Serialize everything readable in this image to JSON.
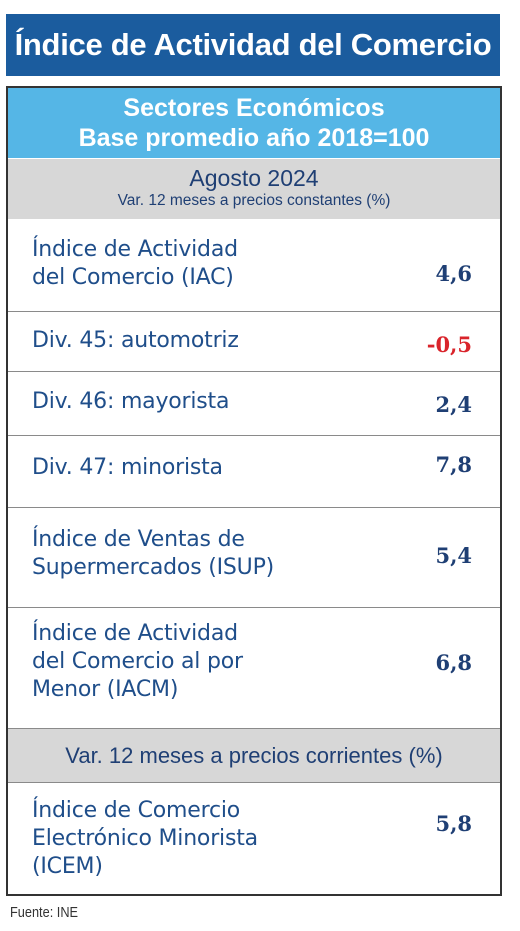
{
  "title": "Índice de Actividad del Comercio",
  "header": {
    "line1": "Sectores Económicos",
    "line2": "Base promedio año 2018=100"
  },
  "period": {
    "month": "Agosto 2024",
    "subtitle": "Var. 12 meses a precios constantes (%)"
  },
  "rows": [
    {
      "label_lines": [
        "Índice de Actividad",
        "del Comercio (IAC)"
      ],
      "value": "4,6",
      "negative": false
    },
    {
      "label_lines": [
        "Div. 45: automotriz"
      ],
      "value": "-0,5",
      "negative": true
    },
    {
      "label_lines": [
        "Div. 46: mayorista"
      ],
      "value": "2,4",
      "negative": false
    },
    {
      "label_lines": [
        "Div. 47: minorista"
      ],
      "value": "7,8",
      "negative": false
    },
    {
      "label_lines": [
        "Índice de Ventas de",
        "Supermercados (ISUP)"
      ],
      "value": "5,4",
      "negative": false
    },
    {
      "label_lines": [
        "Índice de Actividad",
        "del Comercio al por",
        "Menor (IACM)"
      ],
      "value": "6,8",
      "negative": false
    }
  ],
  "section2": {
    "label": "Var. 12 meses a precios corrientes (%)",
    "row": {
      "label_lines": [
        "Índice de Comercio",
        "Electrónico Minorista",
        "(ICEM)"
      ],
      "value": "5,8"
    }
  },
  "footer": "Fuente: INE",
  "colors": {
    "title_bg": "#1b5c9e",
    "header_bg": "#55b6e6",
    "gray_bg": "#d7d7d7",
    "label_text": "#1f4e8a",
    "value_text": "#1f3f74",
    "negative_text": "#d9242b"
  }
}
